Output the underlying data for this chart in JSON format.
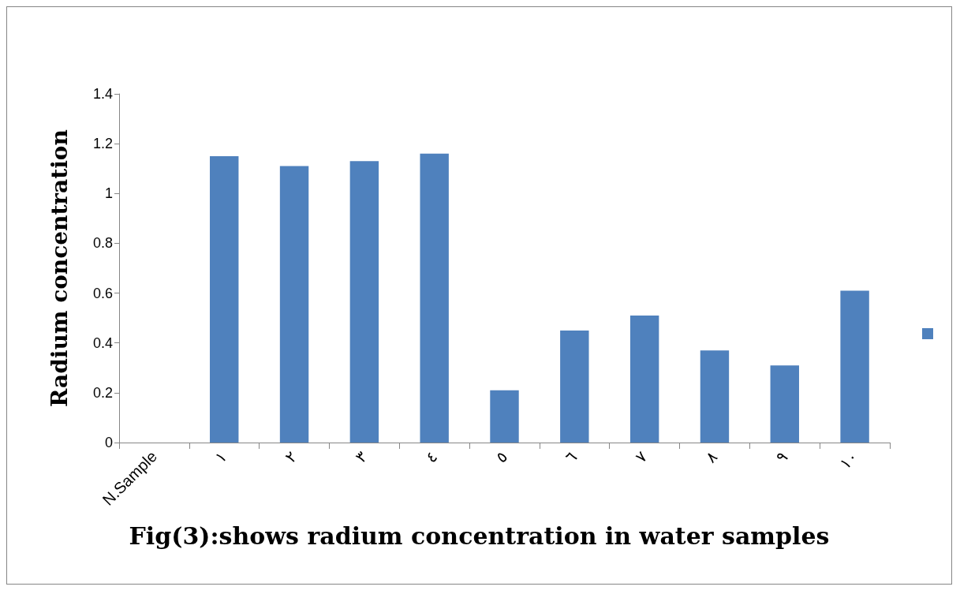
{
  "chart_data": {
    "type": "bar",
    "title": "Fig(3):shows radium concentration in water samples",
    "ylabel": "Radium concentration",
    "categories": [
      "N.Sample",
      "١",
      "٢",
      "٣",
      "٤",
      "٥",
      "٦",
      "٧",
      "٨",
      "٩",
      "١٠"
    ],
    "series": [
      {
        "color": "#4f81bd",
        "values": [
          null,
          1.15,
          1.11,
          1.13,
          1.16,
          0.21,
          0.45,
          0.51,
          0.37,
          0.31,
          0.61
        ]
      }
    ],
    "ylim": [
      0,
      1.4
    ],
    "yticks": [
      0,
      0.2,
      0.4,
      0.6,
      0.8,
      1,
      1.2,
      1.4
    ],
    "grid": false
  }
}
